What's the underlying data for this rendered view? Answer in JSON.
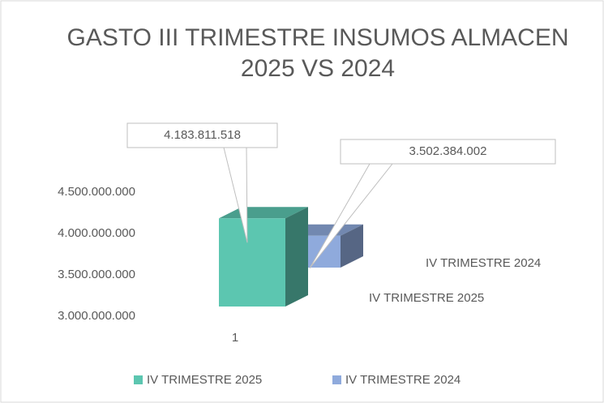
{
  "chart_data": {
    "type": "bar3d",
    "title": "GASTO III TRIMESTRE INSUMOS ALMACEN 2025 VS 2024",
    "categories": [
      "1"
    ],
    "series": [
      {
        "name": "IV TRIMESTRE 2025",
        "color": "#5cc6b0",
        "values": [
          4183811518
        ],
        "value_labels": [
          "4.183.811.518"
        ]
      },
      {
        "name": "IV TRIMESTRE 2024",
        "color": "#8faadc",
        "values": [
          3502384002
        ],
        "value_labels": [
          "3.502.384.002"
        ]
      }
    ],
    "ylim": [
      3000000000,
      4500000000
    ],
    "yticks": [
      {
        "value": 3000000000,
        "label": "3.000.000.000"
      },
      {
        "value": 3500000000,
        "label": "3.500.000.000"
      },
      {
        "value": 4000000000,
        "label": "4.000.000.000"
      },
      {
        "value": 4500000000,
        "label": "4.500.000.000"
      }
    ],
    "grid": false,
    "legend": "bottom"
  }
}
